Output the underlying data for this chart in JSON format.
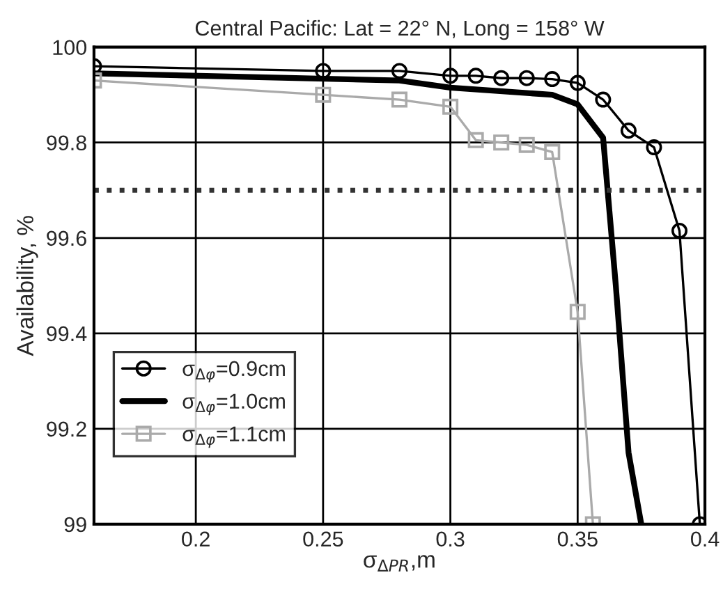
{
  "chart_data": {
    "type": "line",
    "title": "Central Pacific: Lat = 22° N, Long = 158° W",
    "xlabel": "σ$_{ΔPR}$,m",
    "ylabel": "Availability, %",
    "xlim": [
      0.16,
      0.4
    ],
    "xticks": [
      0.2,
      0.25,
      0.3,
      0.35,
      0.4
    ],
    "ylim": [
      99,
      100
    ],
    "yticks": [
      99,
      99.2,
      99.4,
      99.6,
      99.8,
      100
    ],
    "grid": true,
    "legend": "bottom left",
    "series": [
      {
        "name": "σ$_{Δφ}$=0.9cm",
        "color": "#000000",
        "marker": "circle",
        "x": [
          0.16,
          0.25,
          0.28,
          0.3,
          0.31,
          0.32,
          0.33,
          0.34,
          0.35,
          0.36,
          0.37,
          0.38,
          0.39,
          0.398
        ],
        "values": [
          99.96,
          99.95,
          99.95,
          99.94,
          99.94,
          99.935,
          99.935,
          99.933,
          99.925,
          99.89,
          99.825,
          99.79,
          99.615,
          99.0
        ]
      },
      {
        "name": "σ$_{Δφ}$=1.0cm",
        "color": "#000000",
        "marker": "none",
        "x": [
          0.16,
          0.28,
          0.3,
          0.34,
          0.35,
          0.36,
          0.365,
          0.37,
          0.375
        ],
        "values": [
          99.945,
          99.93,
          99.915,
          99.9,
          99.88,
          99.81,
          99.5,
          99.15,
          99.0
        ]
      },
      {
        "name": "σ$_{Δφ}$=1.1cm",
        "color": "#aaaaaa",
        "marker": "square",
        "x": [
          0.16,
          0.25,
          0.28,
          0.3,
          0.31,
          0.32,
          0.33,
          0.34,
          0.35,
          0.356
        ],
        "values": [
          99.93,
          99.9,
          99.89,
          99.875,
          99.805,
          99.8,
          99.795,
          99.78,
          99.445,
          99.0
        ]
      }
    ],
    "ref_lines": [
      {
        "axis": "y",
        "value": 99.7,
        "color": "#333333",
        "line_style": "dotted"
      }
    ]
  }
}
